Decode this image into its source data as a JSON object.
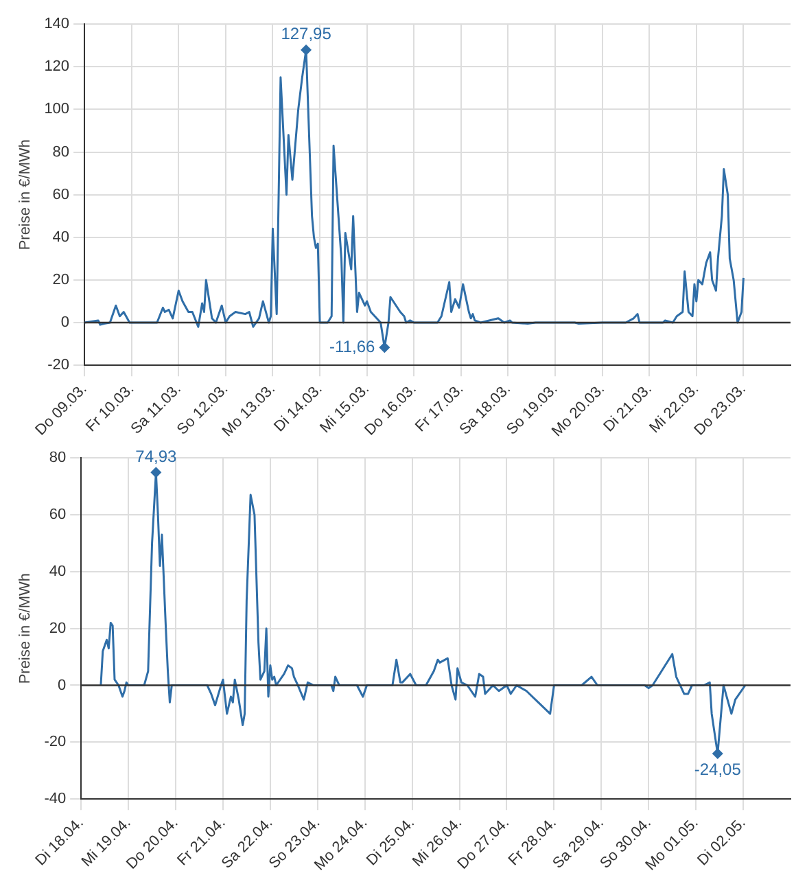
{
  "chart_data": [
    {
      "type": "line",
      "ylabel": "Preise in €/MWh",
      "xlim": [
        "--03-09",
        "--03-24"
      ],
      "ylim": [
        -20,
        140
      ],
      "yticks": [
        -20,
        0,
        20,
        40,
        60,
        80,
        100,
        120,
        140
      ],
      "xticks": [
        {
          "value": "--03-09",
          "label": "Do 09.03."
        },
        {
          "value": "--03-10",
          "label": "Fr 10.03."
        },
        {
          "value": "--03-11",
          "label": "Sa 11.03."
        },
        {
          "value": "--03-12",
          "label": "So 12.03."
        },
        {
          "value": "--03-13",
          "label": "Mo 13.03."
        },
        {
          "value": "--03-14",
          "label": "Di 14.03."
        },
        {
          "value": "--03-15",
          "label": "Mi 15.03."
        },
        {
          "value": "--03-16",
          "label": "Do 16.03."
        },
        {
          "value": "--03-17",
          "label": "Fr 17.03."
        },
        {
          "value": "--03-18",
          "label": "Sa 18.03."
        },
        {
          "value": "--03-19",
          "label": "So 19.03."
        },
        {
          "value": "--03-20",
          "label": "Mo 20.03."
        },
        {
          "value": "--03-21",
          "label": "Di 21.03."
        },
        {
          "value": "--03-22",
          "label": "Mi 22.03."
        },
        {
          "value": "--03-23",
          "label": "Do 23.03."
        }
      ],
      "grid": true,
      "legend": false,
      "marker": "none",
      "ref_lines": [
        {
          "axis": "y",
          "value": 0,
          "color": "#333333"
        }
      ],
      "annotations": [
        {
          "text": "127,95",
          "x": "--03-13T17:00",
          "y": 127.95
        },
        {
          "text": "-11,66",
          "x": "--03-15T09:00",
          "y": -11.66
        }
      ],
      "series": [
        {
          "color": "#2f6ea8",
          "x": [
            "--03-09T00:00",
            "--03-09T07:00",
            "--03-09T08:00",
            "--03-09T10:00",
            "--03-09T13:00",
            "--03-09T16:00",
            "--03-09T18:00",
            "--03-09T20:00",
            "--03-09T23:00",
            "--03-10T12:00",
            "--03-10T13:00",
            "--03-10T16:00",
            "--03-10T17:00",
            "--03-10T19:00",
            "--03-10T21:00",
            "--03-11T00:00",
            "--03-11T02:00",
            "--03-11T05:00",
            "--03-11T07:00",
            "--03-11T10:00",
            "--03-11T12:00",
            "--03-11T13:00",
            "--03-11T14:00",
            "--03-11T17:00",
            "--03-11T19:00",
            "--03-11T22:00",
            "--03-12T00:00",
            "--03-12T02:00",
            "--03-12T05:00",
            "--03-12T10:00",
            "--03-12T12:00",
            "--03-12T14:00",
            "--03-12T17:00",
            "--03-12T19:00",
            "--03-12T22:00",
            "--03-12T23:00",
            "--03-13T00:00",
            "--03-13T02:00",
            "--03-13T04:00",
            "--03-13T07:00",
            "--03-13T08:00",
            "--03-13T10:00",
            "--03-13T13:00",
            "--03-13T15:00",
            "--03-13T17:00",
            "--03-13T20:00",
            "--03-13T21:00",
            "--03-13T22:00",
            "--03-13T23:00",
            "--03-14T00:00",
            "--03-14T04:00",
            "--03-14T06:00",
            "--03-14T07:00",
            "--03-14T11:00",
            "--03-14T12:00",
            "--03-14T13:00",
            "--03-14T16:00",
            "--03-14T17:00",
            "--03-14T19:00",
            "--03-14T20:00",
            "--03-14T23:00",
            "--03-15T00:00",
            "--03-15T02:00",
            "--03-15T05:00",
            "--03-15T07:00",
            "--03-15T09:00",
            "--03-15T11:00",
            "--03-15T12:00",
            "--03-15T17:00",
            "--03-15T19:00",
            "--03-15T20:00",
            "--03-15T22:00",
            "--03-16T00:00",
            "--03-16T12:00",
            "--03-16T14:00",
            "--03-16T18:00",
            "--03-16T19:00",
            "--03-16T21:00",
            "--03-16T23:00",
            "--03-17T01:00",
            "--03-17T04:00",
            "--03-17T05:00",
            "--03-17T06:00",
            "--03-17T07:00",
            "--03-17T10:00",
            "--03-17T19:00",
            "--03-17T22:00",
            "--03-18T01:00",
            "--03-18T02:00",
            "--03-18T10:00",
            "--03-18T14:00",
            "--03-19T10:00",
            "--03-19T12:00",
            "--03-20T00:00",
            "--03-20T12:00",
            "--03-20T16:00",
            "--03-20T18:00",
            "--03-20T19:00",
            "--03-21T07:00",
            "--03-21T08:00",
            "--03-21T12:00",
            "--03-21T14:00",
            "--03-21T17:00",
            "--03-21T18:00",
            "--03-21T20:00",
            "--03-21T22:00",
            "--03-21T23:00",
            "--03-22T00:00",
            "--03-22T01:00",
            "--03-22T03:00",
            "--03-22T05:00",
            "--03-22T07:00",
            "--03-22T08:00",
            "--03-22T10:00",
            "--03-22T11:00",
            "--03-22T13:00",
            "--03-22T14:00",
            "--03-22T16:00",
            "--03-22T17:00",
            "--03-22T19:00",
            "--03-22T21:00",
            "--03-22T23:00",
            "--03-23T00:00"
          ],
          "values": [
            0,
            1,
            -1,
            -0.5,
            0,
            8,
            3,
            5,
            0,
            0,
            0,
            7,
            5,
            6,
            2,
            15,
            10,
            5,
            5,
            -2,
            9,
            5,
            20,
            2,
            0,
            8,
            0,
            3,
            5,
            4,
            5,
            -2,
            2,
            10,
            0,
            3,
            44,
            4,
            115,
            60,
            88,
            67,
            100,
            115,
            127.95,
            50,
            40,
            35,
            37,
            0,
            0,
            3,
            83,
            30,
            0,
            42,
            25,
            50,
            5,
            14,
            8,
            10,
            5,
            2,
            0,
            -11.66,
            0,
            12,
            5,
            3,
            0,
            1,
            0,
            0,
            3,
            19,
            5,
            11,
            7,
            18,
            5,
            2,
            4,
            1,
            0,
            2,
            0,
            1,
            0,
            -0.5,
            0,
            0,
            -0.5,
            0,
            0,
            2,
            4,
            0,
            0,
            1,
            0,
            3,
            5,
            24,
            5,
            3,
            18,
            10,
            20,
            18,
            28,
            33,
            20,
            15,
            30,
            50,
            72,
            60,
            30,
            20,
            0,
            5,
            21
          ]
        }
      ]
    },
    {
      "type": "line",
      "ylabel": "Preise in €/MWh",
      "xlim": [
        "--04-18",
        "--05-03"
      ],
      "ylim": [
        -40,
        80
      ],
      "yticks": [
        -40,
        -20,
        0,
        20,
        40,
        60,
        80
      ],
      "xticks": [
        {
          "value": "--04-18",
          "label": "Di 18.04."
        },
        {
          "value": "--04-19",
          "label": "Mi 19.04."
        },
        {
          "value": "--04-20",
          "label": "Do 20.04."
        },
        {
          "value": "--04-21",
          "label": "Fr 21.04."
        },
        {
          "value": "--04-22",
          "label": "Sa 22.04."
        },
        {
          "value": "--04-23",
          "label": "So 23.04."
        },
        {
          "value": "--04-24",
          "label": "Mo 24.04."
        },
        {
          "value": "--04-25",
          "label": "Di 25.04."
        },
        {
          "value": "--04-26",
          "label": "Mi 26.04."
        },
        {
          "value": "--04-27",
          "label": "Do 27.04."
        },
        {
          "value": "--04-28",
          "label": "Fr 28.04."
        },
        {
          "value": "--04-29",
          "label": "Sa 29.04."
        },
        {
          "value": "--04-30",
          "label": "So 30.04."
        },
        {
          "value": "--05-01",
          "label": "Mo 01.05."
        },
        {
          "value": "--05-02",
          "label": "Di 02.05."
        }
      ],
      "grid": true,
      "legend": false,
      "marker": "none",
      "ref_lines": [
        {
          "axis": "y",
          "value": 0,
          "color": "#333333"
        }
      ],
      "annotations": [
        {
          "text": "74,93",
          "x": "--04-19T14:00",
          "y": 74.93
        },
        {
          "text": "-24,05",
          "x": "--05-01T11:00",
          "y": -24.05
        }
      ],
      "series": [
        {
          "color": "#2f6ea8",
          "x": [
            "--04-18T10:00",
            "--04-18T11:00",
            "--04-18T13:00",
            "--04-18T14:00",
            "--04-18T15:00",
            "--04-18T16:00",
            "--04-18T17:00",
            "--04-18T19:00",
            "--04-18T21:00",
            "--04-18T22:00",
            "--04-18T23:00",
            "--04-19T00:00",
            "--04-19T08:00",
            "--04-19T10:00",
            "--04-19T12:00",
            "--04-19T14:00",
            "--04-19T15:00",
            "--04-19T16:00",
            "--04-19T17:00",
            "--04-19T19:00",
            "--04-19T20:00",
            "--04-19T21:00",
            "--04-19T22:00",
            "--04-20T00:00",
            "--04-20T16:00",
            "--04-20T18:00",
            "--04-20T20:00",
            "--04-20T23:00",
            "--04-21T00:00",
            "--04-21T02:00",
            "--04-21T04:00",
            "--04-21T05:00",
            "--04-21T06:00",
            "--04-21T08:00",
            "--04-21T10:00",
            "--04-21T11:00",
            "--04-21T12:00",
            "--04-21T14:00",
            "--04-21T16:00",
            "--04-21T18:00",
            "--04-21T19:00",
            "--04-21T21:00",
            "--04-21T22:00",
            "--04-21T23:00",
            "--04-22T00:00",
            "--04-22T01:00",
            "--04-22T02:00",
            "--04-22T03:00",
            "--04-22T07:00",
            "--04-22T09:00",
            "--04-22T11:00",
            "--04-22T12:00",
            "--04-22T14:00",
            "--04-22T17:00",
            "--04-22T19:00",
            "--04-22T22:00",
            "--04-23T07:00",
            "--04-23T08:00",
            "--04-23T09:00",
            "--04-23T11:00",
            "--04-23T20:00",
            "--04-23T23:00",
            "--04-24T01:00",
            "--04-24T14:00",
            "--04-24T16:00",
            "--04-24T18:00",
            "--04-24T19:00",
            "--04-24T23:00",
            "--04-25T02:00",
            "--04-25T07:00",
            "--04-25T11:00",
            "--04-25T13:00",
            "--04-25T14:00",
            "--04-25T18:00",
            "--04-25T20:00",
            "--04-25T22:00",
            "--04-25T23:00",
            "--04-26T01:00",
            "--04-26T04:00",
            "--04-26T08:00",
            "--04-26T10:00",
            "--04-26T12:00",
            "--04-26T13:00",
            "--04-26T17:00",
            "--04-26T20:00",
            "--04-27T00:00",
            "--04-27T02:00",
            "--04-27T05:00",
            "--04-27T10:00",
            "--04-27T22:00",
            "--04-28T00:00",
            "--04-28T14:00",
            "--04-28T19:00",
            "--04-28T22:00",
            "--04-29T22:00",
            "--04-30T00:00",
            "--04-30T02:00",
            "--04-30T12:00",
            "--04-30T14:00",
            "--04-30T18:00",
            "--04-30T20:00",
            "--04-30T22:00",
            "--05-01T04:00",
            "--05-01T07:00",
            "--05-01T08:00",
            "--05-01T11:00",
            "--05-01T14:00",
            "--05-01T18:00",
            "--05-01T20:00",
            "--05-02T01:00"
          ],
          "values": [
            0,
            12,
            16,
            13,
            22,
            21,
            2,
            0,
            -4,
            -2,
            1,
            0,
            0,
            5,
            50,
            74.93,
            60,
            42,
            53,
            20,
            5,
            -6,
            0,
            0,
            0,
            -3,
            -7,
            0,
            2,
            -10,
            -4,
            -6,
            2,
            -5,
            -14,
            -10,
            30,
            67,
            60,
            15,
            2,
            5,
            20,
            -4,
            7,
            2,
            3,
            0,
            4,
            7,
            6,
            3,
            0,
            -5,
            1,
            0,
            0,
            -2,
            3,
            0,
            0,
            -4,
            0,
            0,
            9,
            1,
            1,
            4,
            0,
            0,
            5,
            9,
            8,
            9.5,
            0,
            -5,
            6,
            1,
            0,
            -4,
            4,
            3,
            -3,
            0,
            -2,
            0,
            -3,
            0,
            -2,
            -10,
            0,
            0,
            3,
            0,
            0,
            -1,
            0,
            11,
            3,
            -3,
            -3,
            0,
            0,
            1,
            -10,
            -24.05,
            0,
            -10,
            -5,
            0
          ]
        }
      ]
    }
  ]
}
